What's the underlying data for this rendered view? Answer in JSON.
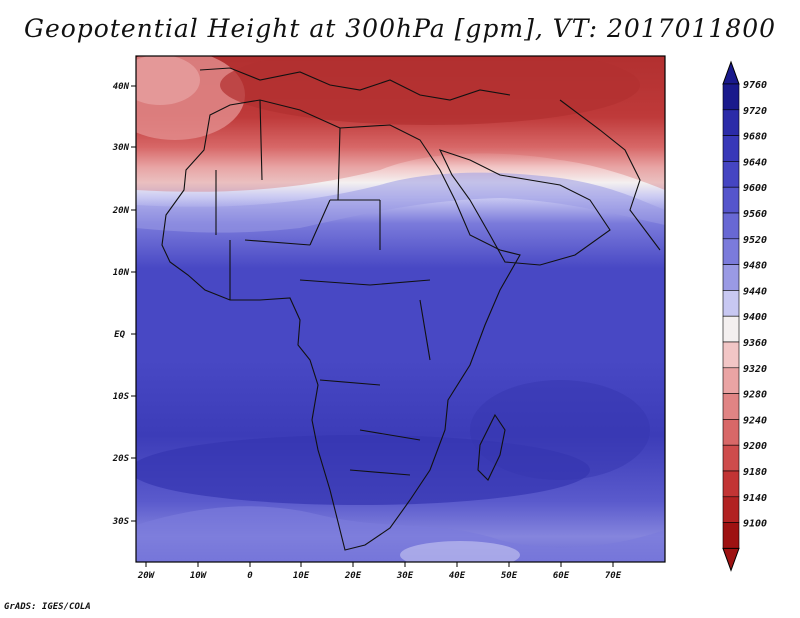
{
  "title": "Geopotential Height at 300hPa [gpm], VT: 2017011800",
  "credit": "GrADS: IGES/COLA",
  "map": {
    "lat_labels": [
      "40N",
      "30N",
      "20N",
      "10N",
      "EQ",
      "10S",
      "20S",
      "30S"
    ],
    "lon_labels": [
      "20W",
      "10W",
      "0",
      "10E",
      "20E",
      "30E",
      "40E",
      "50E",
      "60E",
      "70E"
    ]
  },
  "colorbar": {
    "levels": [
      "9760",
      "9720",
      "9680",
      "9640",
      "9600",
      "9560",
      "9520",
      "9480",
      "9440",
      "9400",
      "9360",
      "9320",
      "9280",
      "9240",
      "9200",
      "9180",
      "9140",
      "9100"
    ],
    "colors": [
      "#1a1a8c",
      "#2b2ba8",
      "#3838b8",
      "#4545c2",
      "#5555cc",
      "#6868d4",
      "#7b7bdb",
      "#9a9ae4",
      "#c8c8f2",
      "#f4f0f0",
      "#f2c6c6",
      "#eaa4a4",
      "#e08484",
      "#d86868",
      "#ce4c4c",
      "#c23434",
      "#b22222",
      "#9e1212"
    ]
  }
}
